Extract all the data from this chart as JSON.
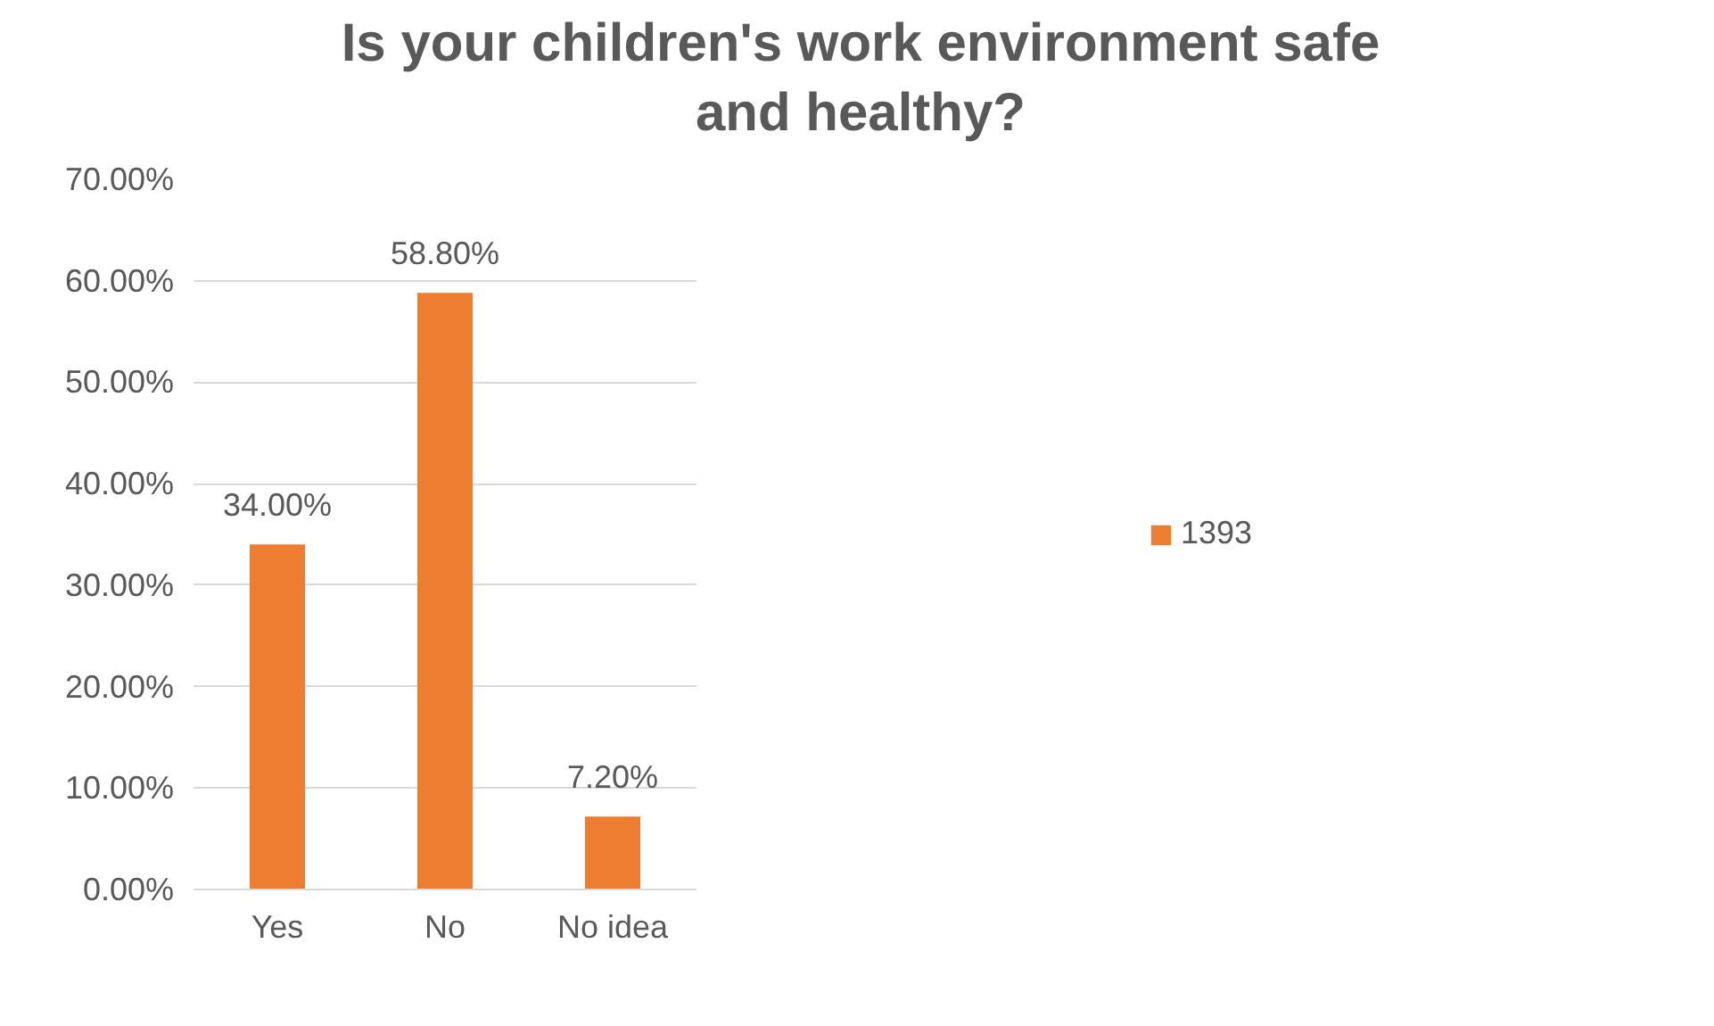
{
  "chart_data": {
    "type": "bar",
    "title": "Is your children's work environment safe and healthy?",
    "categories": [
      "Yes",
      "No",
      "No idea"
    ],
    "series": [
      {
        "name": "1393",
        "color": "#ed7d31",
        "values": [
          34.0,
          58.8,
          7.2
        ],
        "value_labels": [
          "34.00%",
          "58.80%",
          "7.20%"
        ]
      }
    ],
    "ylim": [
      0,
      70
    ],
    "yticks": [
      {
        "value": 0,
        "label": "0.00%"
      },
      {
        "value": 10,
        "label": "10.00%"
      },
      {
        "value": 20,
        "label": "20.00%"
      },
      {
        "value": 30,
        "label": "30.00%"
      },
      {
        "value": 40,
        "label": "40.00%"
      },
      {
        "value": 50,
        "label": "50.00%"
      },
      {
        "value": 60,
        "label": "60.00%"
      },
      {
        "value": 70,
        "label": "70.00%"
      }
    ],
    "grid": "y",
    "legend": "right"
  }
}
